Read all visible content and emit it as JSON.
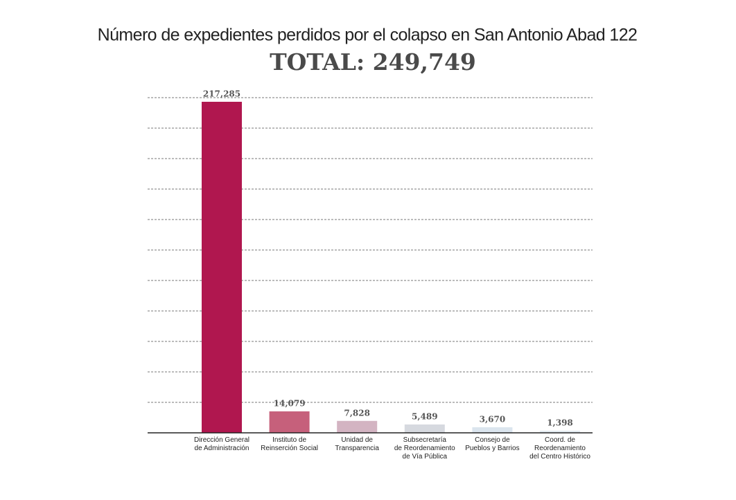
{
  "chart_data": {
    "type": "bar",
    "title": "Número de expedientes perdidos por el colapso en San Antonio Abad 122",
    "subtitle": "TOTAL: 249,749",
    "categories": [
      [
        "Dirección General",
        "de Administración"
      ],
      [
        "Instituto de",
        "Reinserción Social"
      ],
      [
        "Unidad de",
        "Transparencia"
      ],
      [
        "Subsecretaría",
        "de Reordenamiento",
        "de Vía Pública"
      ],
      [
        "Consejo de",
        "Pueblos y Barrios"
      ],
      [
        "Coord. de",
        "Reordenamiento",
        "del Centro Histórico"
      ]
    ],
    "values": [
      217285,
      14079,
      7828,
      5489,
      3670,
      1398
    ],
    "value_labels": [
      "217,285",
      "14,079",
      "7,828",
      "5,489",
      "3,670",
      "1,398"
    ],
    "colors": [
      "#b0174f",
      "#c6607b",
      "#d3b4c2",
      "#d6d9df",
      "#dbe5ee",
      "#e3ebf1"
    ],
    "ylim": [
      0,
      220000
    ],
    "yticks": [
      20000,
      40000,
      60000,
      80000,
      100000,
      120000,
      140000,
      160000,
      180000,
      200000,
      220000
    ],
    "grid": true
  }
}
